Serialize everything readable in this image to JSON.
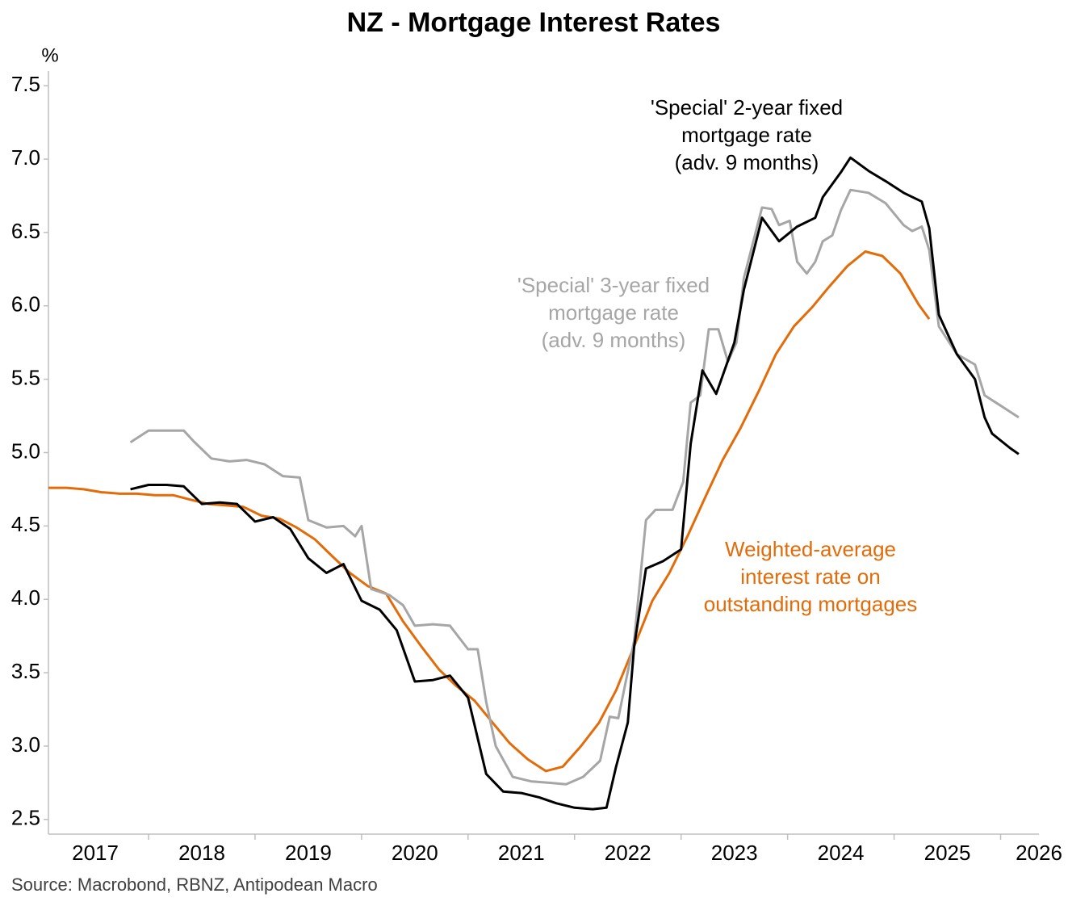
{
  "chart_data": {
    "type": "line",
    "title": "NZ - Mortgage Interest Rates",
    "y_unit_label": "%",
    "source": "Source: Macrobond, RBNZ, Antipodean Macro",
    "xlim": [
      2017.06,
      2026.36
    ],
    "xticks": [
      2017,
      2018,
      2019,
      2020,
      2021,
      2022,
      2023,
      2024,
      2025,
      2026
    ],
    "ylim": [
      2.4,
      7.6
    ],
    "yticks": [
      2.5,
      {
        "value": 3,
        "label": "3.0"
      },
      3.5,
      {
        "value": 4,
        "label": "4.0"
      },
      4.5,
      {
        "value": 5,
        "label": "5.0"
      },
      5.5,
      {
        "value": 6,
        "label": "6.0"
      },
      6.5,
      {
        "value": 7,
        "label": "7.0"
      },
      7.5
    ],
    "series": [
      {
        "name_lines": [
          "Weighted-average",
          "interest rate on",
          "outstanding mortgages"
        ],
        "color": "#e36c0a",
        "x": [
          2017.06,
          2017.23,
          2017.39,
          2017.56,
          2017.73,
          2017.89,
          2018.06,
          2018.23,
          2018.39,
          2018.56,
          2018.73,
          2018.89,
          2019.06,
          2019.23,
          2019.39,
          2019.56,
          2019.73,
          2019.89,
          2020.06,
          2020.23,
          2020.39,
          2020.56,
          2020.73,
          2020.89,
          2021.06,
          2021.23,
          2021.39,
          2021.56,
          2021.73,
          2021.89,
          2022.06,
          2022.23,
          2022.39,
          2022.56,
          2022.73,
          2022.89,
          2023.06,
          2023.23,
          2023.39,
          2023.56,
          2023.73,
          2023.89,
          2024.06,
          2024.23,
          2024.39,
          2024.56,
          2024.73,
          2024.89,
          2025.06,
          2025.23,
          2025.33
        ],
        "values": [
          4.76,
          4.76,
          4.75,
          4.73,
          4.72,
          4.72,
          4.71,
          4.71,
          4.68,
          4.65,
          4.64,
          4.63,
          4.57,
          4.55,
          4.49,
          4.41,
          4.29,
          4.18,
          4.09,
          4.04,
          3.85,
          3.68,
          3.52,
          3.41,
          3.31,
          3.16,
          3.02,
          2.91,
          2.83,
          2.86,
          3.0,
          3.16,
          3.38,
          3.68,
          3.99,
          4.18,
          4.43,
          4.7,
          4.95,
          5.17,
          5.42,
          5.67,
          5.86,
          5.99,
          6.13,
          6.27,
          6.37,
          6.34,
          6.22,
          6.01,
          5.91
        ]
      },
      {
        "name_lines": [
          "'Special' 3-year fixed",
          "mortgage rate",
          "(adv. 9 months)"
        ],
        "color": "#a6a6a6",
        "x": [
          2017.83,
          2018.0,
          2018.17,
          2018.33,
          2018.42,
          2018.59,
          2018.76,
          2018.92,
          2019.09,
          2019.26,
          2019.42,
          2019.5,
          2019.67,
          2019.83,
          2019.94,
          2020.0,
          2020.09,
          2020.26,
          2020.39,
          2020.5,
          2020.67,
          2020.83,
          2021.0,
          2021.09,
          2021.17,
          2021.26,
          2021.42,
          2021.59,
          2021.76,
          2021.92,
          2022.08,
          2022.24,
          2022.33,
          2022.41,
          2022.56,
          2022.67,
          2022.76,
          2022.92,
          2023.02,
          2023.09,
          2023.18,
          2023.26,
          2023.35,
          2023.44,
          2023.52,
          2023.59,
          2023.76,
          2023.85,
          2023.92,
          2024.02,
          2024.09,
          2024.18,
          2024.26,
          2024.33,
          2024.42,
          2024.5,
          2024.59,
          2024.76,
          2024.92,
          2025.09,
          2025.17,
          2025.26,
          2025.33,
          2025.42,
          2025.59,
          2025.76,
          2025.85,
          2026.0,
          2026.17
        ],
        "values": [
          5.07,
          5.15,
          5.15,
          5.15,
          5.08,
          4.96,
          4.94,
          4.95,
          4.92,
          4.84,
          4.83,
          4.54,
          4.49,
          4.5,
          4.43,
          4.5,
          4.07,
          4.03,
          3.96,
          3.82,
          3.83,
          3.82,
          3.66,
          3.66,
          3.3,
          3.0,
          2.79,
          2.76,
          2.75,
          2.74,
          2.79,
          2.9,
          3.2,
          3.19,
          3.72,
          4.54,
          4.61,
          4.61,
          4.8,
          5.34,
          5.39,
          5.84,
          5.84,
          5.62,
          5.75,
          6.19,
          6.67,
          6.66,
          6.55,
          6.58,
          6.3,
          6.22,
          6.3,
          6.44,
          6.48,
          6.65,
          6.79,
          6.77,
          6.7,
          6.55,
          6.51,
          6.54,
          6.38,
          5.86,
          5.67,
          5.6,
          5.39,
          5.32,
          5.24
        ]
      },
      {
        "name_lines": [
          "'Special' 2-year fixed",
          "mortgage rate",
          "(adv. 9 months)"
        ],
        "color": "#000000",
        "x": [
          2017.83,
          2018.0,
          2018.17,
          2018.33,
          2018.5,
          2018.67,
          2018.83,
          2019.0,
          2019.17,
          2019.33,
          2019.5,
          2019.67,
          2019.83,
          2020.0,
          2020.17,
          2020.33,
          2020.5,
          2020.67,
          2020.83,
          2021.0,
          2021.17,
          2021.33,
          2021.5,
          2021.67,
          2021.83,
          2022.0,
          2022.17,
          2022.3,
          2022.39,
          2022.5,
          2022.56,
          2022.67,
          2022.83,
          2023.0,
          2023.09,
          2023.2,
          2023.33,
          2023.5,
          2023.59,
          2023.76,
          2023.92,
          2024.09,
          2024.26,
          2024.33,
          2024.5,
          2024.59,
          2024.76,
          2024.92,
          2025.09,
          2025.26,
          2025.33,
          2025.42,
          2025.59,
          2025.76,
          2025.85,
          2025.92,
          2026.09,
          2026.17
        ],
        "values": [
          4.75,
          4.78,
          4.78,
          4.77,
          4.65,
          4.66,
          4.65,
          4.53,
          4.56,
          4.48,
          4.28,
          4.18,
          4.24,
          3.99,
          3.93,
          3.79,
          3.44,
          3.45,
          3.48,
          3.33,
          2.81,
          2.69,
          2.68,
          2.65,
          2.61,
          2.58,
          2.57,
          2.58,
          2.86,
          3.16,
          3.68,
          4.21,
          4.26,
          4.34,
          5.06,
          5.56,
          5.4,
          5.75,
          6.11,
          6.6,
          6.44,
          6.54,
          6.6,
          6.74,
          6.91,
          7.01,
          6.92,
          6.85,
          6.77,
          6.71,
          6.53,
          5.94,
          5.67,
          5.5,
          5.24,
          5.13,
          5.03,
          4.99
        ]
      }
    ]
  }
}
